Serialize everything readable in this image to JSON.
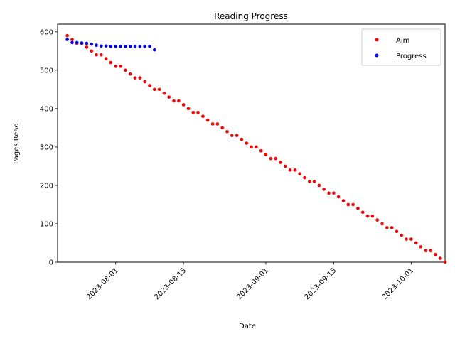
{
  "chart_data": {
    "type": "scatter",
    "title": "Reading Progress",
    "xlabel": "Date",
    "ylabel": "Pages Read",
    "x_range": [
      "2023-07-20",
      "2023-10-08"
    ],
    "ylim": [
      0,
      620
    ],
    "x_ticks": [
      "2023-08-01",
      "2023-08-15",
      "2023-09-01",
      "2023-09-15",
      "2023-10-01"
    ],
    "y_ticks": [
      0,
      100,
      200,
      300,
      400,
      500,
      600
    ],
    "legend_position": "top-right",
    "grid": false,
    "series": [
      {
        "name": "Aim",
        "color": "#ff0000",
        "x_start": "2023-07-22",
        "values": [
          590,
          580,
          570,
          570,
          560,
          550,
          540,
          540,
          530,
          520,
          510,
          510,
          500,
          490,
          480,
          480,
          470,
          460,
          450,
          450,
          440,
          430,
          420,
          420,
          410,
          400,
          390,
          390,
          380,
          370,
          360,
          360,
          350,
          340,
          330,
          330,
          320,
          310,
          300,
          300,
          290,
          280,
          270,
          270,
          260,
          250,
          240,
          240,
          230,
          220,
          210,
          210,
          200,
          190,
          180,
          180,
          170,
          160,
          150,
          150,
          140,
          130,
          120,
          120,
          110,
          100,
          90,
          90,
          80,
          70,
          60,
          60,
          50,
          40,
          30,
          30,
          20,
          10,
          0
        ]
      },
      {
        "name": "Progress",
        "color": "#0000ff",
        "x_start": "2023-07-22",
        "values": [
          580,
          572,
          572,
          571,
          570,
          568,
          565,
          563,
          563,
          562,
          562,
          562,
          562,
          562,
          562,
          562,
          562,
          562,
          553
        ]
      }
    ]
  }
}
